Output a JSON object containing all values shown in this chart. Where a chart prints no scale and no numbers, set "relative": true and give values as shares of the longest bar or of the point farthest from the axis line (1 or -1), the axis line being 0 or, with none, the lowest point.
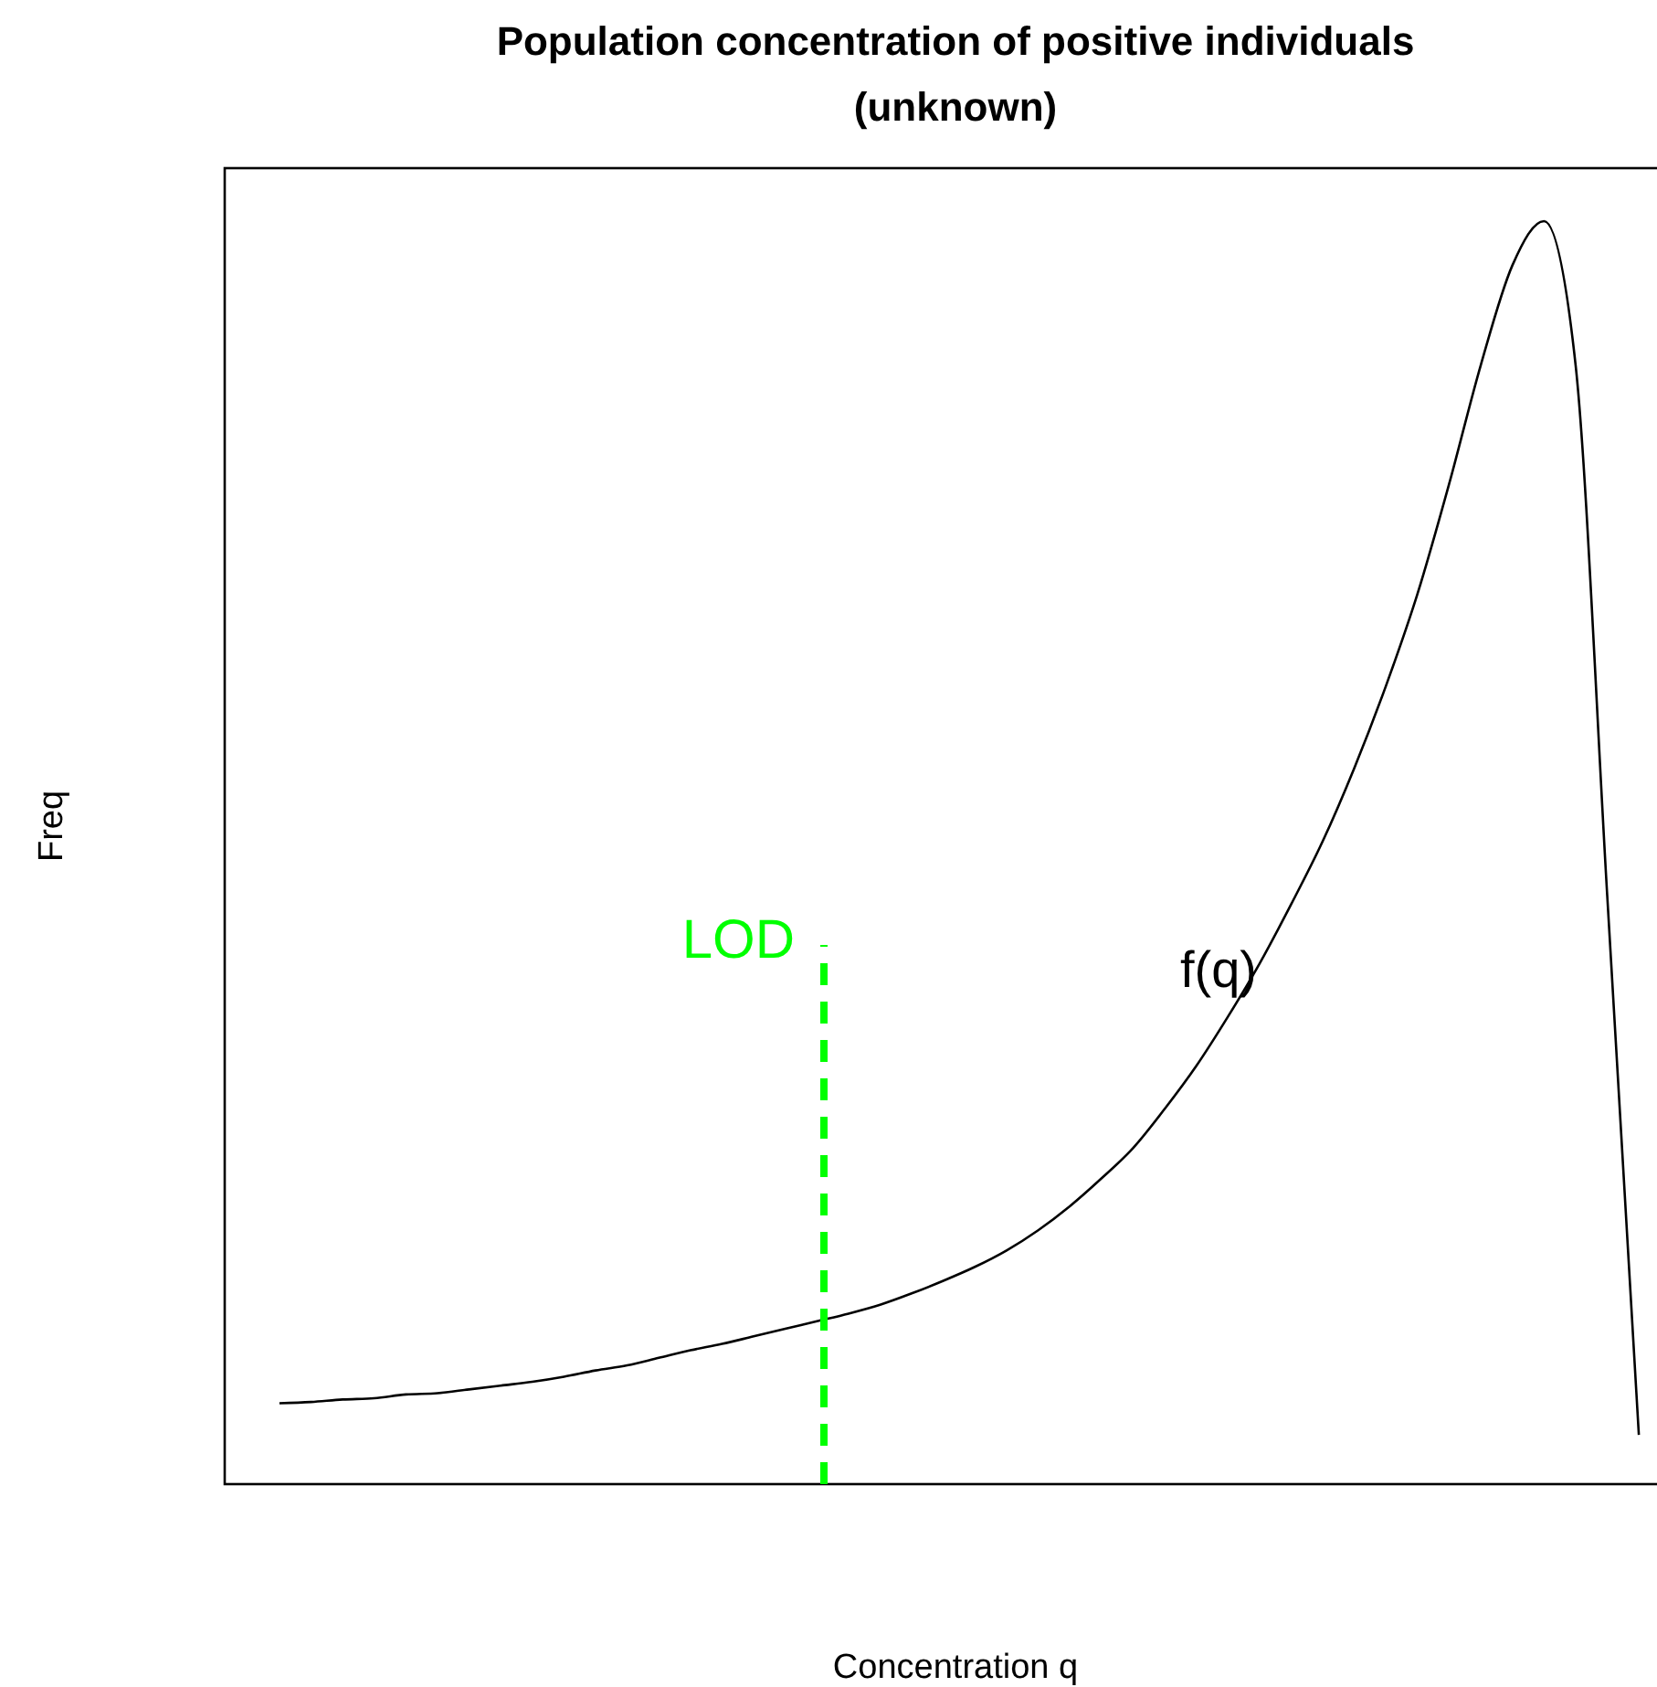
{
  "chart_data": {
    "type": "line",
    "title": "Population concentration of positive individuals",
    "subtitle": "(unknown)",
    "xlabel": "Concentration q",
    "ylabel": "Freq",
    "relative": true,
    "marker": "none",
    "line_style": "solid",
    "categories": [
      null,
      null,
      null,
      null,
      null,
      null,
      null,
      null,
      null,
      null,
      null,
      null,
      null,
      null,
      null,
      null,
      null,
      null,
      null,
      null,
      null,
      null,
      null,
      null,
      null,
      null,
      null,
      null,
      null,
      null,
      null,
      null,
      null,
      null,
      null,
      null,
      null,
      null,
      null,
      null,
      null,
      null,
      null,
      null
    ],
    "series": [
      {
        "color": "#000000",
        "values": [
          0.064,
          0.065,
          0.067,
          0.068,
          0.071,
          0.072,
          0.075,
          0.078,
          0.081,
          0.085,
          0.09,
          0.094,
          0.1,
          0.106,
          0.111,
          0.117,
          0.123,
          0.129,
          0.135,
          0.142,
          0.151,
          0.161,
          0.172,
          0.185,
          0.201,
          0.22,
          0.242,
          0.266,
          0.297,
          0.331,
          0.37,
          0.412,
          0.459,
          0.509,
          0.567,
          0.632,
          0.705,
          0.792,
          0.886,
          0.965,
          1,
          0.886,
          0.466,
          0.039
        ]
      }
    ],
    "annotations": [
      "LOD",
      "f(q)"
    ]
  }
}
